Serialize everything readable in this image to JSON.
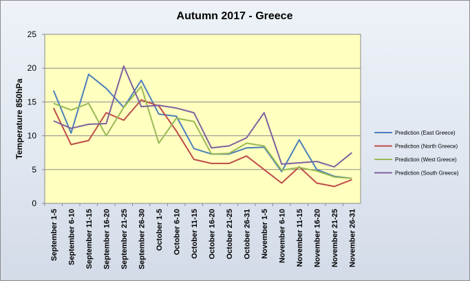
{
  "chart_data": {
    "type": "line",
    "title": "Autumn 2017 - Greece",
    "xlabel": "",
    "ylabel": "Temperature 850hPa",
    "ylim": [
      0,
      25
    ],
    "yticks": [
      0,
      5,
      10,
      15,
      20,
      25
    ],
    "grid": true,
    "legend": "right",
    "categories": [
      "September 1-5",
      "September 6-10",
      "September 11-15",
      "September 16-20",
      "September 21-25",
      "September 26-30",
      "October 1-5",
      "October 6-10",
      "October 11-15",
      "October 16-20",
      "October 21-25",
      "October 26-31",
      "November 1-5",
      "November 6-10",
      "November 11-15",
      "November 16-20",
      "November 21-25",
      "November 26-31"
    ],
    "series": [
      {
        "name": "Prediction (East Greece)",
        "color": "#4a7ebb",
        "values": [
          16.7,
          10.4,
          19.1,
          17.0,
          14.2,
          18.2,
          13.2,
          12.9,
          8.1,
          7.3,
          7.3,
          8.2,
          8.3,
          4.7,
          9.4,
          5.0,
          4.0,
          3.7
        ]
      },
      {
        "name": "Prediction (North Greece)",
        "color": "#be4b48",
        "values": [
          14.1,
          8.7,
          9.3,
          13.4,
          12.3,
          15.3,
          14.4,
          10.7,
          6.5,
          5.9,
          5.9,
          7.0,
          5.0,
          3.0,
          5.4,
          3.0,
          2.5,
          3.5
        ]
      },
      {
        "name": "Prediction (West Greece)",
        "color": "#98b954",
        "values": [
          14.8,
          13.8,
          14.8,
          10.0,
          14.2,
          17.3,
          8.9,
          12.6,
          12.1,
          7.3,
          7.4,
          8.9,
          8.5,
          4.9,
          5.3,
          4.8,
          3.9,
          3.7
        ]
      },
      {
        "name": "Prediction (South Greece)",
        "color": "#7d60a0",
        "values": [
          12.2,
          11.1,
          11.7,
          11.8,
          20.3,
          14.3,
          14.5,
          14.1,
          13.4,
          8.2,
          8.5,
          9.7,
          13.4,
          5.8,
          6.0,
          6.2,
          5.4,
          7.5
        ]
      }
    ]
  }
}
